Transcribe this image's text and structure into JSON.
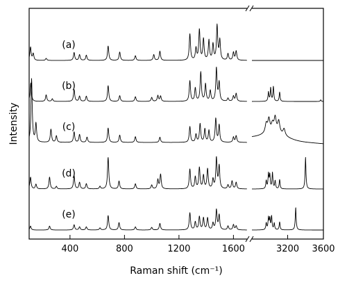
{
  "chart_data": {
    "type": "line",
    "xlabel": "Raman shift (cm⁻¹)",
    "ylabel": "Intensity",
    "xaxis": {
      "broken": true,
      "segment_1": {
        "range": [
          100,
          1700
        ],
        "ticks": [
          400,
          800,
          1200,
          1600
        ]
      },
      "segment_2": {
        "range": [
          2800,
          3600
        ],
        "ticks": [
          3200,
          3600
        ]
      }
    },
    "y_ticks_shown": false,
    "grid": false,
    "legend": "none",
    "series": [
      {
        "name": "(a)",
        "baseline": 0,
        "peaks_seg1": [
          [
            110,
            0.5
          ],
          [
            130,
            0.25
          ],
          [
            225,
            0.08
          ],
          [
            430,
            0.3
          ],
          [
            470,
            0.22
          ],
          [
            520,
            0.2
          ],
          [
            680,
            0.55
          ],
          [
            765,
            0.32
          ],
          [
            880,
            0.18
          ],
          [
            1015,
            0.22
          ],
          [
            1060,
            0.35
          ],
          [
            1280,
            1.0
          ],
          [
            1325,
            0.45
          ],
          [
            1350,
            1.15
          ],
          [
            1380,
            0.8
          ],
          [
            1420,
            0.75
          ],
          [
            1450,
            0.6
          ],
          [
            1480,
            1.3
          ],
          [
            1500,
            0.75
          ],
          [
            1560,
            0.25
          ],
          [
            1600,
            0.3
          ],
          [
            1620,
            0.35
          ]
        ],
        "seg2_shape": "flat"
      },
      {
        "name": "(b)",
        "baseline": 0,
        "peaks_seg1": [
          [
            112,
            0.7
          ],
          [
            225,
            0.25
          ],
          [
            270,
            0.1
          ],
          [
            430,
            0.45
          ],
          [
            470,
            0.2
          ],
          [
            520,
            0.2
          ],
          [
            680,
            0.6
          ],
          [
            765,
            0.22
          ],
          [
            880,
            0.18
          ],
          [
            1000,
            0.15
          ],
          [
            1045,
            0.22
          ],
          [
            1065,
            0.2
          ],
          [
            1280,
            0.78
          ],
          [
            1320,
            0.5
          ],
          [
            1360,
            1.1
          ],
          [
            1395,
            0.65
          ],
          [
            1430,
            0.4
          ],
          [
            1475,
            1.25
          ],
          [
            1495,
            0.7
          ],
          [
            1560,
            0.12
          ],
          [
            1600,
            0.2
          ],
          [
            1620,
            0.3
          ]
        ],
        "peaks_seg2": [
          [
            2985,
            0.35
          ],
          [
            3010,
            0.5
          ],
          [
            3040,
            0.55
          ],
          [
            3110,
            0.35
          ],
          [
            3570,
            0.06
          ]
        ]
      },
      {
        "name": "(c)",
        "baseline": 0,
        "peaks_seg1": [
          [
            118,
            2.4
          ],
          [
            150,
            0.7
          ],
          [
            260,
            0.5
          ],
          [
            300,
            0.25
          ],
          [
            430,
            0.4
          ],
          [
            470,
            0.3
          ],
          [
            525,
            0.2
          ],
          [
            680,
            0.55
          ],
          [
            765,
            0.28
          ],
          [
            880,
            0.22
          ],
          [
            1060,
            0.2
          ],
          [
            1280,
            0.6
          ],
          [
            1325,
            0.3
          ],
          [
            1355,
            0.7
          ],
          [
            1390,
            0.5
          ],
          [
            1420,
            0.45
          ],
          [
            1470,
            0.9
          ],
          [
            1495,
            0.65
          ],
          [
            1600,
            0.2
          ],
          [
            1620,
            0.25
          ]
        ],
        "seg2_shape": "broad band 2950-3200 with shoulders, sloping to lower baseline at 3600"
      },
      {
        "name": "(d)",
        "baseline": 0,
        "peaks_seg1": [
          [
            110,
            0.45
          ],
          [
            150,
            0.18
          ],
          [
            250,
            0.45
          ],
          [
            300,
            0.1
          ],
          [
            430,
            0.5
          ],
          [
            470,
            0.25
          ],
          [
            520,
            0.2
          ],
          [
            620,
            0.1
          ],
          [
            680,
            1.2
          ],
          [
            760,
            0.3
          ],
          [
            880,
            0.2
          ],
          [
            1000,
            0.15
          ],
          [
            1045,
            0.35
          ],
          [
            1065,
            0.55
          ],
          [
            1280,
            0.75
          ],
          [
            1320,
            0.45
          ],
          [
            1350,
            0.8
          ],
          [
            1380,
            0.5
          ],
          [
            1410,
            0.75
          ],
          [
            1450,
            0.35
          ],
          [
            1475,
            1.15
          ],
          [
            1495,
            0.85
          ],
          [
            1560,
            0.15
          ],
          [
            1590,
            0.3
          ],
          [
            1620,
            0.25
          ]
        ],
        "peaks_seg2": [
          [
            2960,
            0.3
          ],
          [
            2985,
            0.55
          ],
          [
            3000,
            0.5
          ],
          [
            3030,
            0.6
          ],
          [
            3060,
            0.3
          ],
          [
            3110,
            0.35
          ],
          [
            3400,
            1.2
          ]
        ]
      },
      {
        "name": "(e)",
        "baseline": 0,
        "peaks_seg1": [
          [
            110,
            0.15
          ],
          [
            250,
            0.15
          ],
          [
            430,
            0.2
          ],
          [
            470,
            0.12
          ],
          [
            520,
            0.12
          ],
          [
            620,
            0.08
          ],
          [
            680,
            0.55
          ],
          [
            760,
            0.28
          ],
          [
            880,
            0.12
          ],
          [
            1000,
            0.1
          ],
          [
            1060,
            0.25
          ],
          [
            1280,
            0.65
          ],
          [
            1320,
            0.3
          ],
          [
            1350,
            0.5
          ],
          [
            1380,
            0.45
          ],
          [
            1410,
            0.45
          ],
          [
            1450,
            0.25
          ],
          [
            1475,
            0.75
          ],
          [
            1495,
            0.55
          ],
          [
            1560,
            0.15
          ],
          [
            1600,
            0.2
          ],
          [
            1620,
            0.15
          ]
        ],
        "peaks_seg2": [
          [
            2960,
            0.25
          ],
          [
            2985,
            0.45
          ],
          [
            3000,
            0.4
          ],
          [
            3020,
            0.5
          ],
          [
            3050,
            0.25
          ],
          [
            3110,
            0.3
          ],
          [
            3290,
            0.85
          ]
        ]
      }
    ]
  }
}
